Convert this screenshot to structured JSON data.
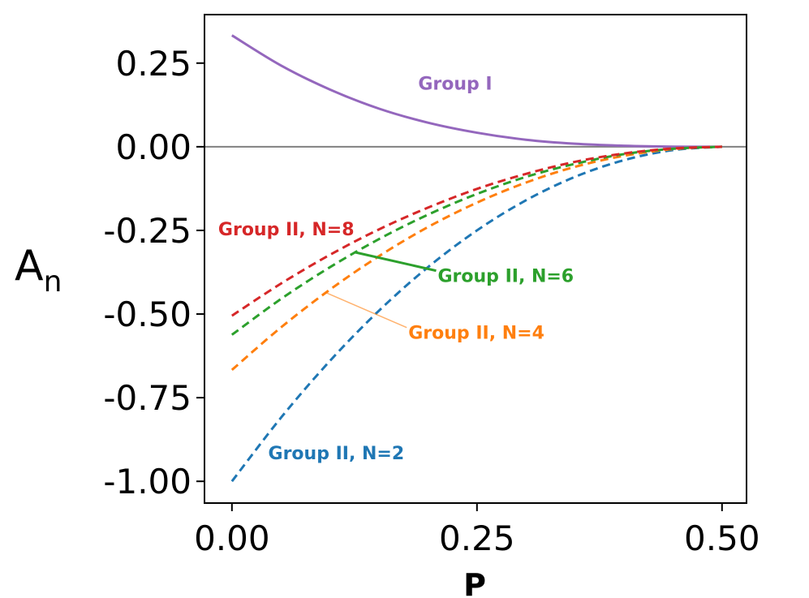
{
  "chart_data": {
    "type": "line",
    "title": "",
    "xlabel": "P",
    "ylabel": "A",
    "ylabel_subscript": "n",
    "xlim": [
      -0.028,
      0.525
    ],
    "ylim": [
      -1.065,
      0.395
    ],
    "xticks": [
      0.0,
      0.25,
      0.5
    ],
    "xtick_labels": [
      "0.00",
      "0.25",
      "0.50"
    ],
    "yticks": [
      0.25,
      0.0,
      -0.25,
      -0.5,
      -0.75,
      -1.0
    ],
    "ytick_labels": [
      "0.25",
      "0.00",
      "-0.25",
      "-0.50",
      "-0.75",
      "-1.00"
    ],
    "reference_line": {
      "y": 0,
      "color": "#808080"
    },
    "x": [
      0.0,
      0.05,
      0.1,
      0.15,
      0.2,
      0.25,
      0.3,
      0.35,
      0.4,
      0.45,
      0.5
    ],
    "series": [
      {
        "name": "Group I",
        "style": "solid",
        "color": "#9467bd",
        "values": [
          0.333,
          0.243,
          0.171,
          0.114,
          0.072,
          0.042,
          0.021,
          0.009,
          0.003,
          0.0003,
          0.0
        ]
      },
      {
        "name": "Group II, N=2",
        "style": "dashed",
        "color": "#1f77b4",
        "values": [
          -1.0,
          -0.81,
          -0.64,
          -0.49,
          -0.36,
          -0.25,
          -0.16,
          -0.09,
          -0.04,
          -0.01,
          0.0
        ]
      },
      {
        "name": "Group II, N=4",
        "style": "dashed",
        "color": "#ff7f0e",
        "values": [
          -0.667,
          -0.54,
          -0.427,
          -0.327,
          -0.24,
          -0.167,
          -0.107,
          -0.06,
          -0.027,
          -0.007,
          0.0
        ]
      },
      {
        "name": "Group II, N=6",
        "style": "dashed",
        "color": "#2ca02c",
        "values": [
          -0.562,
          -0.455,
          -0.36,
          -0.276,
          -0.203,
          -0.141,
          -0.09,
          -0.051,
          -0.022,
          -0.006,
          0.0
        ]
      },
      {
        "name": "Group II, N=8",
        "style": "dashed",
        "color": "#d62728",
        "values": [
          -0.505,
          -0.409,
          -0.323,
          -0.247,
          -0.182,
          -0.126,
          -0.081,
          -0.045,
          -0.02,
          -0.005,
          0.0
        ]
      }
    ],
    "annotations": [
      {
        "text": "Group I",
        "color": "#9467bd",
        "x": 0.19,
        "y": 0.19
      },
      {
        "text": "Group II, N=8",
        "color": "#d62728",
        "x": -0.014,
        "y": -0.245
      },
      {
        "text": "Group II, N=6",
        "color": "#2ca02c",
        "x": 0.21,
        "y": -0.385,
        "arrow_to": [
          0.125,
          -0.315
        ]
      },
      {
        "text": "Group II, N=4",
        "color": "#ff7f0e",
        "x": 0.18,
        "y": -0.555,
        "arrow_to": [
          0.095,
          -0.435
        ]
      },
      {
        "text": "Group II, N=2",
        "color": "#1f77b4",
        "x": 0.037,
        "y": -0.915
      }
    ]
  }
}
